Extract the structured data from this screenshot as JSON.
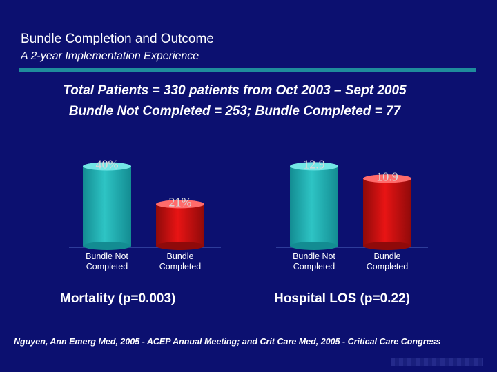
{
  "header": {
    "title": "Bundle Completion and Outcome",
    "subtitle": "A 2-year Implementation Experience"
  },
  "stats": {
    "line1": "Total Patients = 330 patients from Oct 2003 – Sept 2005",
    "line2": "Bundle Not Completed = 253; Bundle Completed = 77"
  },
  "citation": "Nguyen, Ann Emerg Med, 2005 - ACEP Annual Meeting; and Crit Care Med, 2005 -  Critical Care Congress",
  "colors": {
    "background": "#0c1070",
    "bar_not_completed": "#2ec4c4",
    "bar_completed": "#e81414",
    "accent_rule": "#1f8c9c"
  },
  "chart_data": [
    {
      "type": "bar",
      "title": "Mortality (p=0.003)",
      "categories": [
        "Bundle Not\nCompleted",
        "Bundle\nCompleted"
      ],
      "values": [
        40,
        21
      ],
      "value_labels": [
        "40%",
        "21%"
      ],
      "ylim": [
        0,
        45
      ],
      "grid": false
    },
    {
      "type": "bar",
      "title": "Hospital LOS (p=0.22)",
      "categories": [
        "Bundle Not\nCompleted",
        "Bundle\nCompleted"
      ],
      "values": [
        12.9,
        10.9
      ],
      "value_labels": [
        "12.9",
        "10.9"
      ],
      "ylim": [
        0,
        14.5
      ],
      "grid": false
    }
  ]
}
